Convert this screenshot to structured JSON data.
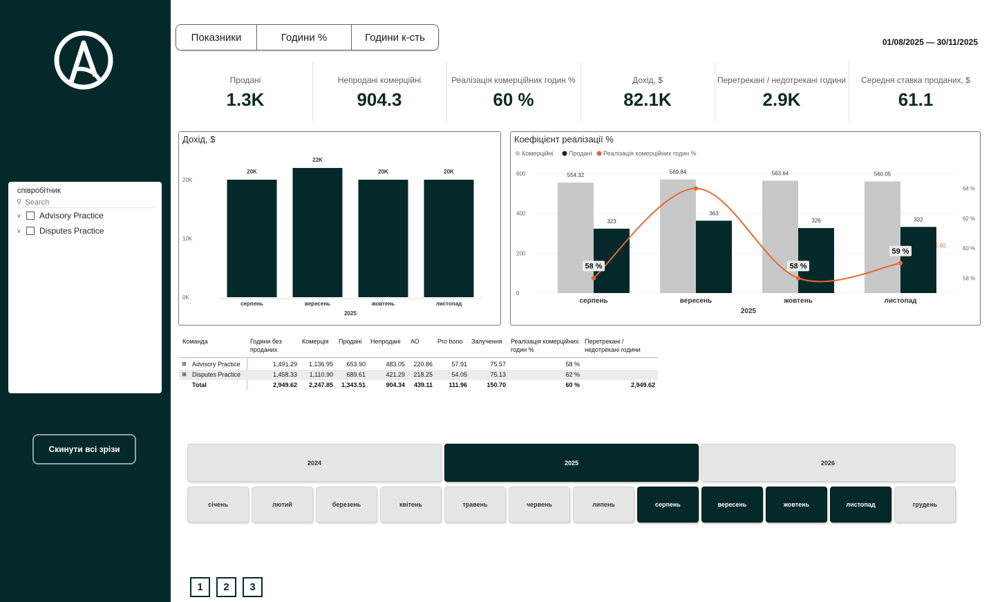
{
  "tabs": [
    "Показники",
    "Години %",
    "Години к-сть"
  ],
  "date_range": {
    "start": "01/08/2025",
    "separator": "—",
    "end": "30/11/2025"
  },
  "kpis": [
    {
      "label": "Продані",
      "value": "1.3K"
    },
    {
      "label": "Непродані комерційні",
      "value": "904.3"
    },
    {
      "label": "Реалізація комерційних годин %",
      "value": "60 %"
    },
    {
      "label": "Дохід, $",
      "value": "82.1K"
    },
    {
      "label": "Перетрекані / недотрекані години",
      "value": "2.9K"
    },
    {
      "label": "Середня ставка проданих, $",
      "value": "61.1"
    }
  ],
  "sidebar": {
    "slicer": {
      "title": "співробітник",
      "search_placeholder": "Search",
      "items": [
        "Advisory Practice",
        "Disputes Practice"
      ]
    },
    "reset_label": "Скинути всі зрізи"
  },
  "colors": {
    "dark": "#05292a",
    "grey_bar": "#c8c8c8",
    "orange": "#e8692f"
  },
  "chart_data": [
    {
      "type": "bar",
      "title": "Дохід, $",
      "categories": [
        "серпень",
        "вересень",
        "жовтень",
        "листопад"
      ],
      "xgroup": "2025",
      "values": [
        20000,
        22000,
        20000,
        20000
      ],
      "data_labels": [
        "20K",
        "22K",
        "20K",
        "20K"
      ],
      "ylim": [
        0,
        20000
      ],
      "yticks": [
        "0K",
        "10K",
        "20K"
      ],
      "grid": false
    },
    {
      "type": "bar",
      "title": "Коефіцієнт реалізації %",
      "legend": [
        "Комерційні",
        "Продані",
        "Реалізація комерційних годин %"
      ],
      "legend_position": "top-left",
      "categories": [
        "серпень",
        "вересень",
        "жовтень",
        "листопад"
      ],
      "xgroup": "2025",
      "series": [
        {
          "name": "Комерційні",
          "values": [
            554.32,
            569.84,
            563.64,
            560.05
          ],
          "labels": [
            "554.32",
            "569.84",
            "563.64",
            "560.05"
          ]
        },
        {
          "name": "Продані",
          "values": [
            323,
            363,
            326,
            332
          ],
          "labels": [
            "323",
            "363",
            "326",
            "332"
          ]
        },
        {
          "name": "Реалізація комерційних годин %",
          "type": "line",
          "values": [
            58,
            64,
            58,
            59
          ],
          "labels": [
            "58 %",
            "",
            "58 %",
            "59 %"
          ]
        }
      ],
      "ylim": [
        0,
        600
      ],
      "yticks": [
        "0",
        "200",
        "400",
        "600"
      ],
      "y2lim": [
        57,
        65
      ],
      "y2ticks": [
        "58 %",
        "60 %",
        "62 %",
        "64 %"
      ],
      "reference_label": "0.60",
      "grid": true
    }
  ],
  "matrix": {
    "headers": [
      "Команда",
      "Години без продaних",
      "Комерція",
      "Продані",
      "Непродані",
      "АО",
      "Pro bono",
      "Залучення",
      "Реалізація комерційних годин %",
      "Перетрекані / недотрекані години"
    ],
    "rows": [
      {
        "name": "Advisory Practice",
        "cells": [
          "1,491.29",
          "1,136.95",
          "653.90",
          "483.05",
          "220.86",
          "57.91",
          "75.57",
          "58 %",
          ""
        ]
      },
      {
        "name": "Disputes Practice",
        "cells": [
          "1,458.33",
          "1,110.90",
          "689.61",
          "421.29",
          "218.25",
          "54.05",
          "75.13",
          "62 %",
          ""
        ]
      }
    ],
    "total": {
      "name": "Total",
      "cells": [
        "2,949.62",
        "2,247.85",
        "1,343.51",
        "904.34",
        "439.11",
        "111.96",
        "150.70",
        "60 %",
        "2,949.62"
      ]
    }
  },
  "years": [
    {
      "label": "2024",
      "selected": false
    },
    {
      "label": "2025",
      "selected": true
    },
    {
      "label": "2026",
      "selected": false
    }
  ],
  "months": [
    {
      "label": "січень",
      "selected": false
    },
    {
      "label": "лютий",
      "selected": false
    },
    {
      "label": "березень",
      "selected": false
    },
    {
      "label": "квітень",
      "selected": false
    },
    {
      "label": "травень",
      "selected": false
    },
    {
      "label": "червень",
      "selected": false
    },
    {
      "label": "липень",
      "selected": false
    },
    {
      "label": "серпень",
      "selected": true
    },
    {
      "label": "вересень",
      "selected": true
    },
    {
      "label": "жовтень",
      "selected": true
    },
    {
      "label": "листопад",
      "selected": true
    },
    {
      "label": "грудень",
      "selected": false
    }
  ],
  "pages": [
    "1",
    "2",
    "3"
  ]
}
